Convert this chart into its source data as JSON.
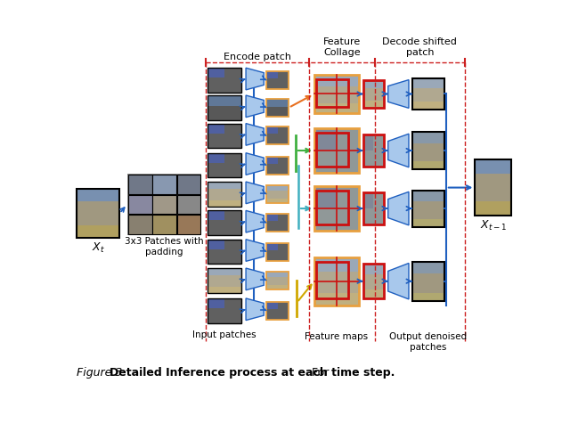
{
  "bg_color": "#ffffff",
  "label_encode": "Encode patch",
  "label_feature": "Feature\nCollage",
  "label_decode": "Decode shifted\npatch",
  "label_input": "Input patches",
  "label_feature_maps": "Feature maps",
  "label_output": "Output denoised\npatches",
  "label_xt": "$X_t$",
  "label_xt1": "$X_{t-1}$",
  "label_3x3": "3x3 Patches with\npadding",
  "blue_light": "#A8C8EC",
  "blue_dark": "#2060C0",
  "orange_border": "#E8A040",
  "orange_arrow": "#E87020",
  "green_line": "#40B040",
  "yellow_line": "#D0A800",
  "cyan_line": "#40B0C0",
  "red_line": "#CC2020",
  "red_rect": "#CC1010",
  "patch_gray_dark": "#606060",
  "patch_gray_med": "#808080",
  "collage_gray": "#909090",
  "collage_bg": "#A0A0A0",
  "feat_small_gray": "#909090",
  "out_patch_gray": "#707070",
  "grid_gray": "#787878"
}
